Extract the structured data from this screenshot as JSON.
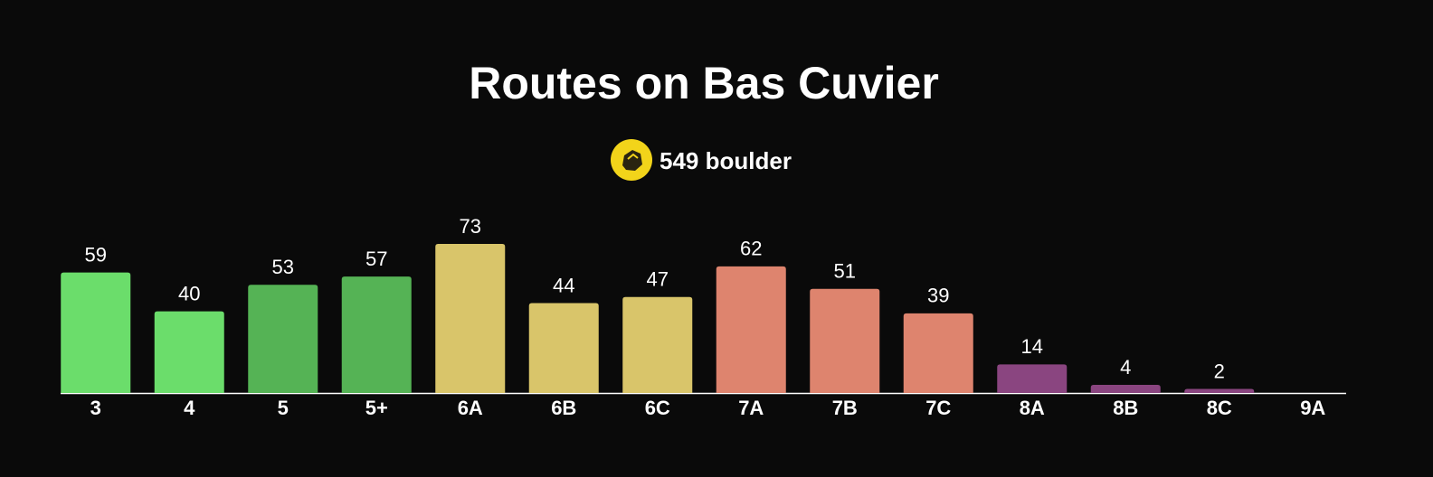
{
  "chart_data": {
    "type": "bar",
    "title": "Routes on Bas Cuvier",
    "subtitle": "549 boulder",
    "categories": [
      "3",
      "4",
      "5",
      "5+",
      "6A",
      "6B",
      "6C",
      "7A",
      "7B",
      "7C",
      "8A",
      "8B",
      "8C",
      "9A"
    ],
    "values": [
      59,
      40,
      53,
      57,
      73,
      44,
      47,
      62,
      51,
      39,
      14,
      4,
      2,
      null
    ],
    "colors": [
      "#6bdd6b",
      "#6bdd6b",
      "#55b355",
      "#55b355",
      "#d9c56a",
      "#d9c56a",
      "#d9c56a",
      "#de846e",
      "#de846e",
      "#de846e",
      "#8a4580",
      "#8a4580",
      "#8a4580",
      "#8a4580"
    ]
  }
}
